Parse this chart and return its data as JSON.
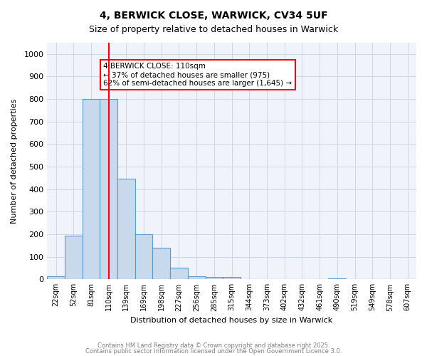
{
  "title1": "4, BERWICK CLOSE, WARWICK, CV34 5UF",
  "title2": "Size of property relative to detached houses in Warwick",
  "xlabel": "Distribution of detached houses by size in Warwick",
  "ylabel": "Number of detached properties",
  "categories": [
    "22sqm",
    "52sqm",
    "81sqm",
    "110sqm",
    "139sqm",
    "169sqm",
    "198sqm",
    "227sqm",
    "256sqm",
    "285sqm",
    "315sqm",
    "344sqm",
    "373sqm",
    "402sqm",
    "432sqm",
    "461sqm",
    "490sqm",
    "519sqm",
    "549sqm",
    "578sqm",
    "607sqm"
  ],
  "values": [
    15,
    195,
    800,
    800,
    445,
    200,
    140,
    50,
    15,
    10,
    10,
    0,
    0,
    0,
    0,
    0,
    5,
    0,
    0,
    0,
    0
  ],
  "bar_color": "#c9d9ec",
  "bar_edge_color": "#5b9bd5",
  "red_line_index": 3,
  "annotation_text": "4 BERWICK CLOSE: 110sqm\n← 37% of detached houses are smaller (975)\n62% of semi-detached houses are larger (1,645) →",
  "annotation_box_color": "white",
  "annotation_box_edge": "red",
  "ylim": [
    0,
    1050
  ],
  "yticks": [
    0,
    100,
    200,
    300,
    400,
    500,
    600,
    700,
    800,
    900,
    1000
  ],
  "grid_color": "#d0d8e8",
  "background_color": "#f0f4fa",
  "footer1": "Contains HM Land Registry data © Crown copyright and database right 2025.",
  "footer2": "Contains public sector information licensed under the Open Government Licence 3.0."
}
